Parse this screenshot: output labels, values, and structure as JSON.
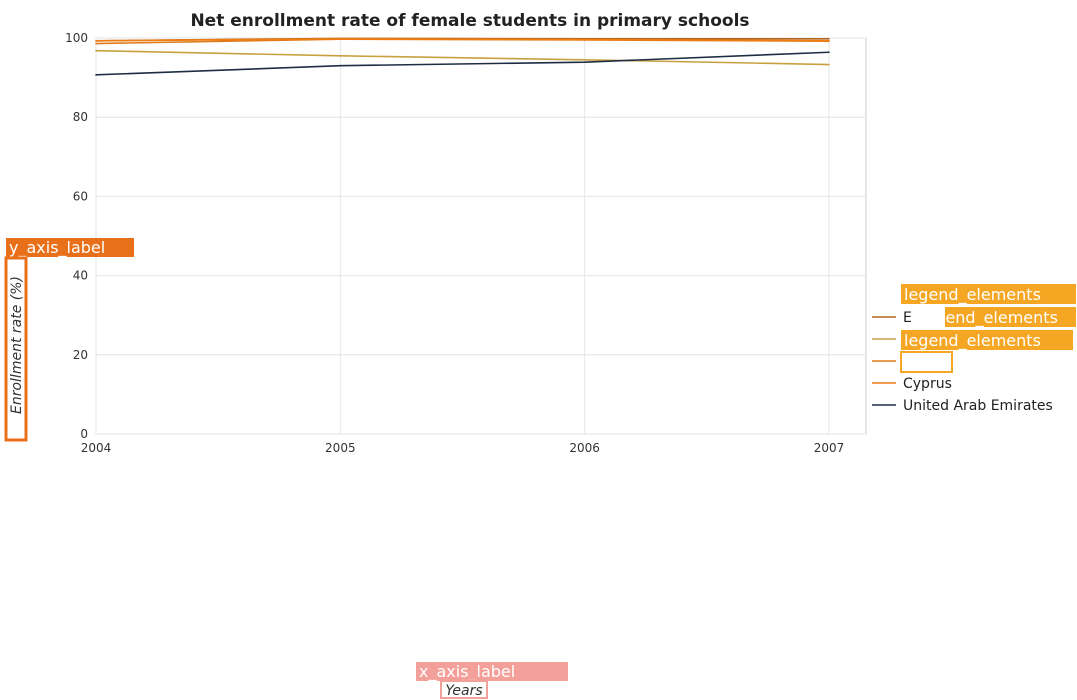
{
  "chart_data": {
    "type": "line",
    "title": "Net enrollment rate of female students in primary schools",
    "xlabel": "Years",
    "ylabel": "Enrollment rate (%)",
    "categories": [
      "2004",
      "2005",
      "2006",
      "2007"
    ],
    "ylim": [
      0,
      100
    ],
    "yticks": [
      0,
      20,
      40,
      60,
      80,
      100
    ],
    "grid": true,
    "legend_position": "right",
    "series": [
      {
        "name": "E",
        "color": "#b5651d",
        "values": [
          99.3,
          99.9,
          99.8,
          99.8
        ]
      },
      {
        "name": "",
        "color": "#c8a040",
        "values": [
          96.8,
          95.5,
          94.5,
          93.3
        ]
      },
      {
        "name": "",
        "color": "#e07a1a",
        "values": [
          98.6,
          99.7,
          99.5,
          99.2
        ]
      },
      {
        "name": "Cyprus",
        "color": "#ee7d12",
        "values": [
          99.3,
          99.8,
          99.6,
          99.3
        ]
      },
      {
        "name": "United Arab Emirates",
        "color": "#1f2d44",
        "values": [
          90.7,
          93.0,
          93.9,
          96.4
        ]
      }
    ]
  },
  "overlay_tags": {
    "y_axis": "y_axis_label",
    "x_axis": "x_axis_label",
    "legend": [
      "legend_elements",
      "legend_elements",
      "legend_elements"
    ]
  },
  "colors": {
    "tag_dark_orange": "#e8701a",
    "tag_orange": "#f5a623",
    "tag_pink": "#f4a09a",
    "grid": "#e6e6e6"
  }
}
